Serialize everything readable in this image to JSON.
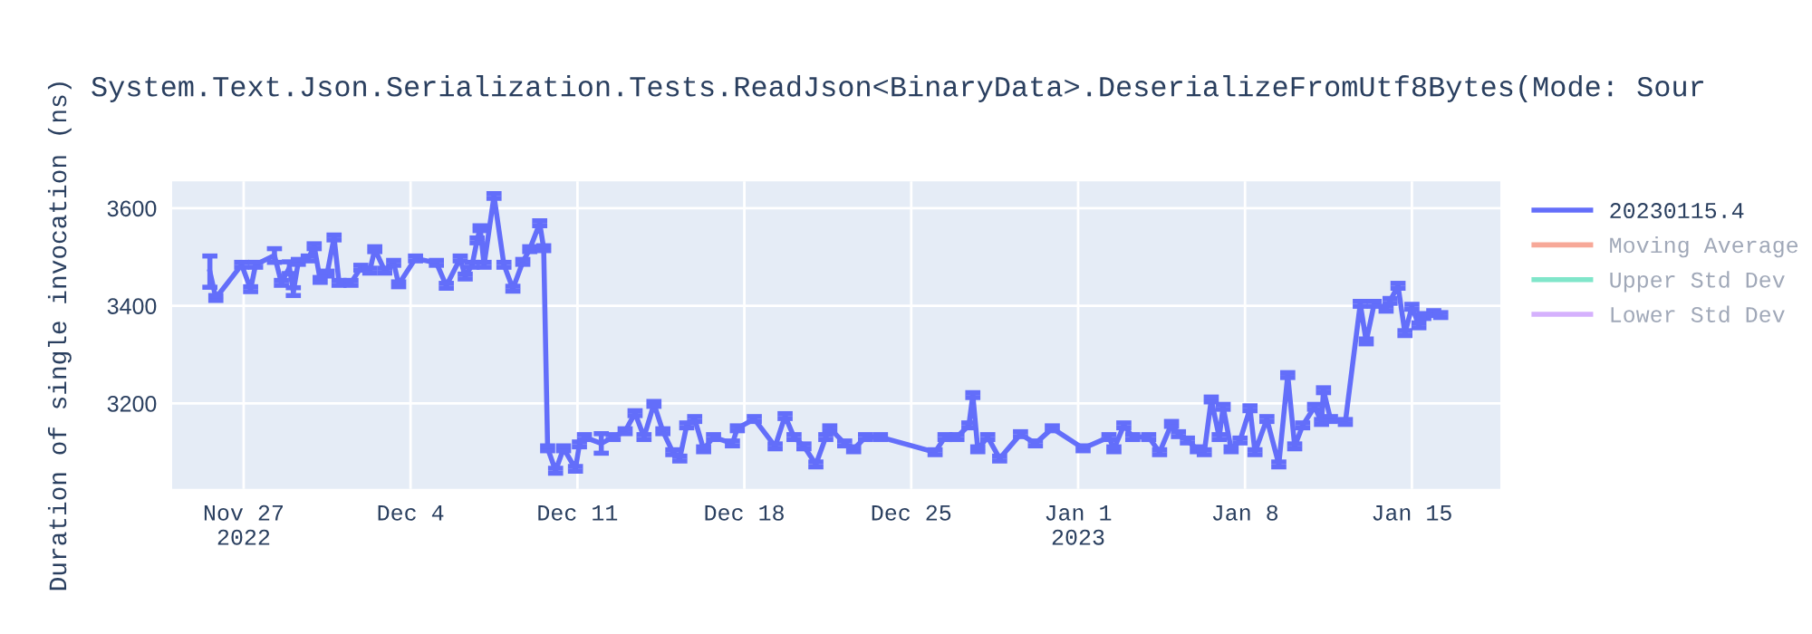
{
  "chart_data": {
    "type": "line",
    "title": "System.Text.Json.Serialization.Tests.ReadJson<BinaryData>.DeserializeFromUtf8Bytes(Mode: Sour",
    "ylabel": "Duration of single invocation (ns)",
    "xlim": [
      "2022-11-24",
      "2023-01-18T17:00"
    ],
    "xticks": [
      {
        "value": "2022-11-27",
        "label": "Nov 27\n2022"
      },
      {
        "value": "2022-12-04",
        "label": "Dec 4"
      },
      {
        "value": "2022-12-11",
        "label": "Dec 11"
      },
      {
        "value": "2022-12-18",
        "label": "Dec 18"
      },
      {
        "value": "2022-12-25",
        "label": "Dec 25"
      },
      {
        "value": "2023-01-01",
        "label": "Jan 1\n2023"
      },
      {
        "value": "2023-01-08",
        "label": "Jan 8"
      },
      {
        "value": "2023-01-15",
        "label": "Jan 15"
      }
    ],
    "ylim": [
      3025,
      3655
    ],
    "yticks": [
      3200,
      3400,
      3600
    ],
    "grid": true,
    "legend": "top right",
    "marker": "none",
    "line_style": "solid",
    "series": [
      {
        "name": "20230115.4",
        "color": "#636efa",
        "x": [
          "2022-11-25T14:00",
          "2022-11-25T20:00",
          "2022-11-26T22:00",
          "2022-11-27T07:00",
          "2022-11-27T12:00",
          "2022-11-28T07:00",
          "2022-11-28T14:00",
          "2022-11-28T22:00",
          "2022-11-29T02:00",
          "2022-11-29T07:00",
          "2022-11-29T17:00",
          "2022-11-29T23:00",
          "2022-11-30T05:00",
          "2022-11-30T12:00",
          "2022-11-30T19:00",
          "2022-12-01T00:00",
          "2022-12-01T12:00",
          "2022-12-01T22:00",
          "2022-12-02T07:00",
          "2022-12-02T12:00",
          "2022-12-02T22:00",
          "2022-12-03T07:00",
          "2022-12-03T12:00",
          "2022-12-04T05:00",
          "2022-12-05T02:00",
          "2022-12-05T12:00",
          "2022-12-06T02:00",
          "2022-12-06T07:00",
          "2022-12-06T14:00",
          "2022-12-06T19:00",
          "2022-12-06T22:00",
          "2022-12-07T02:00",
          "2022-12-07T12:00",
          "2022-12-07T22:00",
          "2022-12-08T07:00",
          "2022-12-08T17:00",
          "2022-12-09T00:00",
          "2022-12-09T10:00",
          "2022-12-09T14:00",
          "2022-12-09T18:00",
          "2022-12-10T02:00",
          "2022-12-10T10:00",
          "2022-12-10T22:00",
          "2022-12-11T02:00",
          "2022-12-11T07:00",
          "2022-12-12T00:00",
          "2022-12-12T12:00",
          "2022-12-13T00:00",
          "2022-12-13T10:00",
          "2022-12-13T19:00",
          "2022-12-14T05:00",
          "2022-12-14T14:00",
          "2022-12-15T00:00",
          "2022-12-15T07:00",
          "2022-12-15T14:00",
          "2022-12-15T22:00",
          "2022-12-16T07:00",
          "2022-12-16T17:00",
          "2022-12-17T12:00",
          "2022-12-17T17:00",
          "2022-12-18T10:00",
          "2022-12-19T07:00",
          "2022-12-19T17:00",
          "2022-12-20T02:00",
          "2022-12-20T12:00",
          "2022-12-21T00:00",
          "2022-12-21T10:00",
          "2022-12-21T14:00",
          "2022-12-22T05:00",
          "2022-12-22T14:00",
          "2022-12-23T02:00",
          "2022-12-23T17:00",
          "2022-12-26T00:00",
          "2022-12-26T10:00",
          "2022-12-26T22:00",
          "2022-12-27T10:00",
          "2022-12-27T14:00",
          "2022-12-27T19:00",
          "2022-12-28T05:00",
          "2022-12-28T17:00",
          "2022-12-29T14:00",
          "2022-12-30T05:00",
          "2022-12-30T22:00",
          "2023-01-01T05:00",
          "2023-01-02T07:00",
          "2023-01-02T12:00",
          "2023-01-02T22:00",
          "2023-01-03T07:00",
          "2023-01-03T23:00",
          "2023-01-04T10:00",
          "2023-01-04T22:00",
          "2023-01-05T05:00",
          "2023-01-05T14:00",
          "2023-01-06T00:00",
          "2023-01-06T07:00",
          "2023-01-06T14:00",
          "2023-01-06T22:00",
          "2023-01-07T02:00",
          "2023-01-07T10:00",
          "2023-01-07T19:00",
          "2023-01-08T05:00",
          "2023-01-08T10:00",
          "2023-01-08T22:00",
          "2023-01-09T10:00",
          "2023-01-09T19:00",
          "2023-01-10T02:00",
          "2023-01-10T10:00",
          "2023-01-10T22:00",
          "2023-01-11T05:00",
          "2023-01-11T07:00",
          "2023-01-11T14:00",
          "2023-01-12T05:00",
          "2023-01-12T20:00",
          "2023-01-13T02:00",
          "2023-01-13T10:00",
          "2023-01-13T22:00",
          "2023-01-14T02:00",
          "2023-01-14T10:00",
          "2023-01-14T17:00",
          "2023-01-15T00:00",
          "2023-01-15T07:00",
          "2023-01-15T12:00",
          "2023-01-15T22:00",
          "2023-01-16T05:00"
        ],
        "values": [
          3470,
          3416,
          3484,
          3434,
          3484,
          3503,
          3447,
          3478,
          3429,
          3490,
          3497,
          3522,
          3453,
          3466,
          3540,
          3447,
          3447,
          3478,
          3472,
          3516,
          3472,
          3488,
          3444,
          3497,
          3488,
          3441,
          3497,
          3460,
          3484,
          3534,
          3559,
          3484,
          3625,
          3484,
          3435,
          3490,
          3516,
          3569,
          3518,
          3108,
          3062,
          3108,
          3066,
          3116,
          3131,
          3118,
          3131,
          3143,
          3180,
          3131,
          3199,
          3143,
          3100,
          3087,
          3155,
          3168,
          3106,
          3131,
          3118,
          3149,
          3168,
          3112,
          3174,
          3131,
          3112,
          3075,
          3131,
          3149,
          3118,
          3106,
          3131,
          3131,
          3100,
          3131,
          3131,
          3155,
          3217,
          3106,
          3131,
          3087,
          3137,
          3118,
          3149,
          3108,
          3131,
          3106,
          3155,
          3131,
          3131,
          3100,
          3158,
          3137,
          3124,
          3106,
          3100,
          3208,
          3131,
          3193,
          3106,
          3124,
          3190,
          3100,
          3168,
          3075,
          3258,
          3112,
          3155,
          3193,
          3162,
          3227,
          3168,
          3162,
          3404,
          3327,
          3404,
          3394,
          3410,
          3441,
          3344,
          3398,
          3360,
          3379,
          3385,
          3381
        ],
        "errors": [
          32,
          5,
          5,
          5,
          5,
          14,
          5,
          12,
          8,
          5,
          5,
          5,
          5,
          5,
          5,
          5,
          5,
          5,
          5,
          5,
          5,
          5,
          5,
          5,
          5,
          5,
          5,
          5,
          5,
          5,
          5,
          5,
          5,
          5,
          5,
          5,
          5,
          5,
          5,
          5,
          5,
          5,
          5,
          5,
          5,
          20,
          5,
          5,
          5,
          5,
          5,
          5,
          5,
          5,
          5,
          5,
          5,
          5,
          5,
          5,
          5,
          5,
          5,
          5,
          5,
          5,
          5,
          5,
          5,
          5,
          5,
          5,
          5,
          5,
          5,
          5,
          5,
          5,
          5,
          5,
          5,
          5,
          5,
          5,
          5,
          5,
          5,
          5,
          5,
          5,
          5,
          5,
          5,
          5,
          5,
          5,
          5,
          5,
          5,
          5,
          5,
          5,
          5,
          5,
          5,
          5,
          5,
          5,
          5,
          5,
          5,
          5,
          5,
          5,
          5,
          5,
          5,
          5,
          5,
          5,
          5,
          5,
          5,
          5
        ]
      },
      {
        "name": "Moving Average",
        "color": "#f7a898"
      },
      {
        "name": "Upper Std Dev",
        "color": "#80e6ca"
      },
      {
        "name": "Lower Std Dev",
        "color": "#d5b1fd"
      }
    ]
  }
}
